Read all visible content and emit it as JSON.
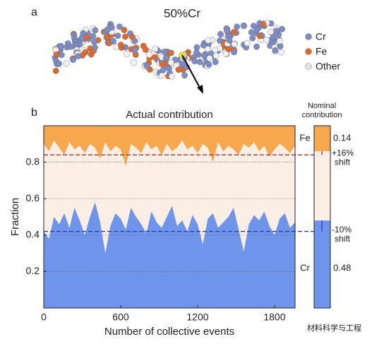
{
  "panel_a": {
    "label": "a",
    "title": "50%Cr",
    "legend": [
      {
        "name": "Cr",
        "color": "#7d8cc4"
      },
      {
        "name": "Fe",
        "color": "#dc6a2c"
      },
      {
        "name": "Other",
        "color": "#e4e4e4"
      }
    ]
  },
  "chart_data": {
    "type": "area",
    "label": "b",
    "title": "Actual contribution",
    "xlabel": "Number of collective events",
    "ylabel": "Fraction",
    "xlim": [
      0,
      1960
    ],
    "ylim": [
      0,
      1
    ],
    "xticks": [
      0,
      600,
      1200,
      1800
    ],
    "yticks": [
      0.2,
      0.4,
      0.6,
      0.8
    ],
    "grid": true,
    "background": "#fbeee5",
    "x": [
      0,
      40,
      80,
      120,
      160,
      200,
      240,
      280,
      320,
      360,
      400,
      440,
      480,
      520,
      560,
      600,
      640,
      680,
      720,
      760,
      800,
      840,
      880,
      920,
      960,
      1000,
      1040,
      1080,
      1120,
      1160,
      1200,
      1240,
      1280,
      1320,
      1360,
      1400,
      1440,
      1480,
      1520,
      1560,
      1600,
      1640,
      1680,
      1720,
      1760,
      1800,
      1840,
      1880,
      1920,
      1960
    ],
    "series": [
      {
        "name": "Cr",
        "color": "#6f95ea",
        "base": "bottom",
        "nominal": 0.48,
        "shift_line": 0.42,
        "shift_label": "-10%",
        "shift_text": "shift",
        "line_color": "#2233bb",
        "values": [
          0.42,
          0.38,
          0.5,
          0.46,
          0.52,
          0.44,
          0.55,
          0.48,
          0.4,
          0.5,
          0.58,
          0.47,
          0.3,
          0.45,
          0.52,
          0.49,
          0.43,
          0.55,
          0.5,
          0.46,
          0.41,
          0.53,
          0.47,
          0.44,
          0.5,
          0.56,
          0.45,
          0.48,
          0.42,
          0.51,
          0.46,
          0.35,
          0.49,
          0.52,
          0.44,
          0.47,
          0.5,
          0.55,
          0.43,
          0.31,
          0.46,
          0.51,
          0.48,
          0.53,
          0.45,
          0.4,
          0.49,
          0.52,
          0.44,
          0.47
        ]
      },
      {
        "name": "Fe",
        "color": "#f7a74c",
        "base": "top",
        "nominal": 0.14,
        "shift_line": 0.84,
        "shift_label": "+16%",
        "shift_text": "shift",
        "line_color": "#aa1c1c",
        "values": [
          0.1,
          0.14,
          0.08,
          0.12,
          0.16,
          0.09,
          0.13,
          0.11,
          0.15,
          0.1,
          0.12,
          0.18,
          0.09,
          0.14,
          0.11,
          0.13,
          0.22,
          0.1,
          0.12,
          0.15,
          0.09,
          0.13,
          0.11,
          0.16,
          0.1,
          0.14,
          0.12,
          0.08,
          0.13,
          0.11,
          0.15,
          0.1,
          0.12,
          0.2,
          0.09,
          0.14,
          0.11,
          0.13,
          0.16,
          0.1,
          0.12,
          0.09,
          0.14,
          0.11,
          0.17,
          0.13,
          0.1,
          0.12,
          0.15,
          0.11
        ]
      }
    ],
    "nominal_title": [
      "Nominal",
      "contribution"
    ]
  },
  "watermark": "材料科学与工程"
}
